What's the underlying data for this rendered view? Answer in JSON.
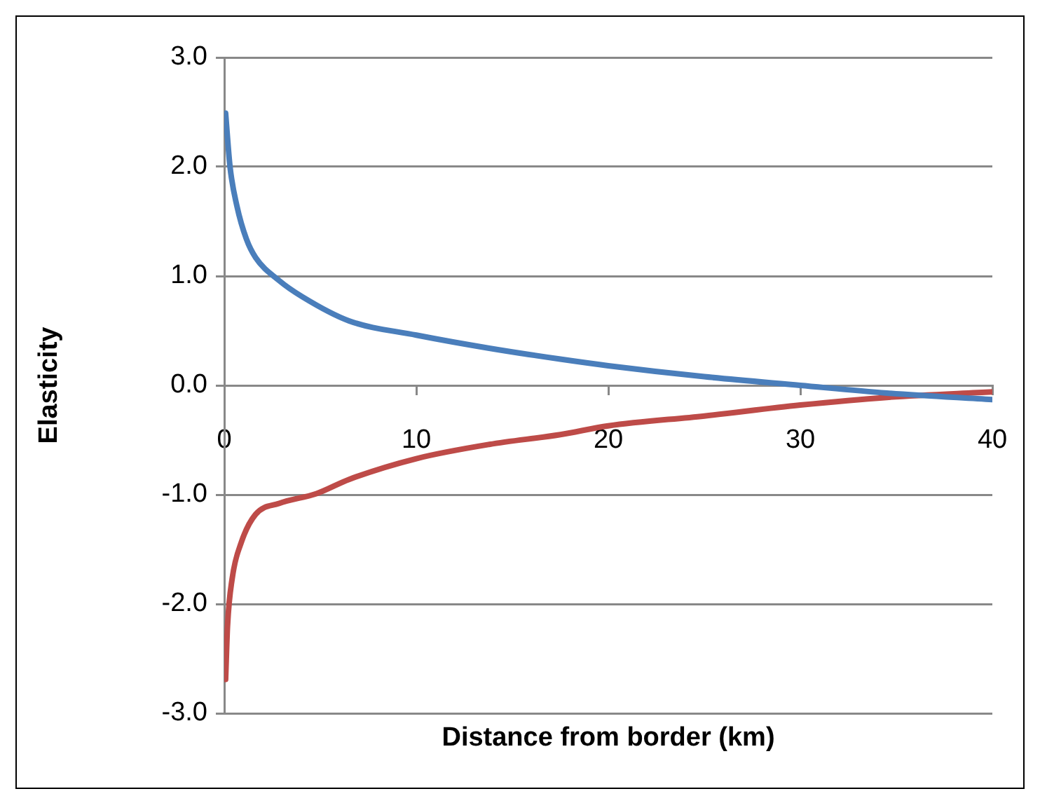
{
  "chart_data": {
    "type": "line",
    "xlabel": "Distance from border (km)",
    "ylabel": "Elasticity",
    "xlim": [
      0,
      40
    ],
    "xticks": [
      0,
      10,
      20,
      30,
      40
    ],
    "ylim": [
      -3,
      3
    ],
    "yticks": [
      {
        "value": -3,
        "label": "-3.0"
      },
      {
        "value": -2,
        "label": "-2.0"
      },
      {
        "value": -1,
        "label": "-1.0"
      },
      {
        "value": 0,
        "label": "0.0"
      },
      {
        "value": 1,
        "label": "1.0"
      },
      {
        "value": 2,
        "label": "2.0"
      },
      {
        "value": 3,
        "label": "3.0"
      }
    ],
    "grid": "y",
    "legend": false,
    "series": [
      {
        "color": "#4a7ebb",
        "x": [
          0.07,
          0.3,
          0.66,
          1.15,
          1.63,
          2.85,
          4.07,
          6.5,
          10,
          13.8,
          17.5,
          20,
          25,
          30,
          34.5,
          40
        ],
        "values": [
          2.49,
          2.0,
          1.64,
          1.34,
          1.17,
          0.96,
          0.81,
          0.59,
          0.46,
          0.34,
          0.24,
          0.18,
          0.08,
          0.0,
          -0.07,
          -0.13
        ]
      },
      {
        "color": "#be4b48",
        "x": [
          0.07,
          0.17,
          0.41,
          0.9,
          1.63,
          2.85,
          4.8,
          6.5,
          10,
          13.8,
          17.5,
          20,
          25,
          30,
          34.5,
          40
        ],
        "values": [
          -2.69,
          -2.2,
          -1.77,
          -1.43,
          -1.18,
          -1.08,
          -0.99,
          -0.86,
          -0.67,
          -0.54,
          -0.45,
          -0.37,
          -0.28,
          -0.18,
          -0.11,
          -0.06
        ]
      }
    ]
  }
}
